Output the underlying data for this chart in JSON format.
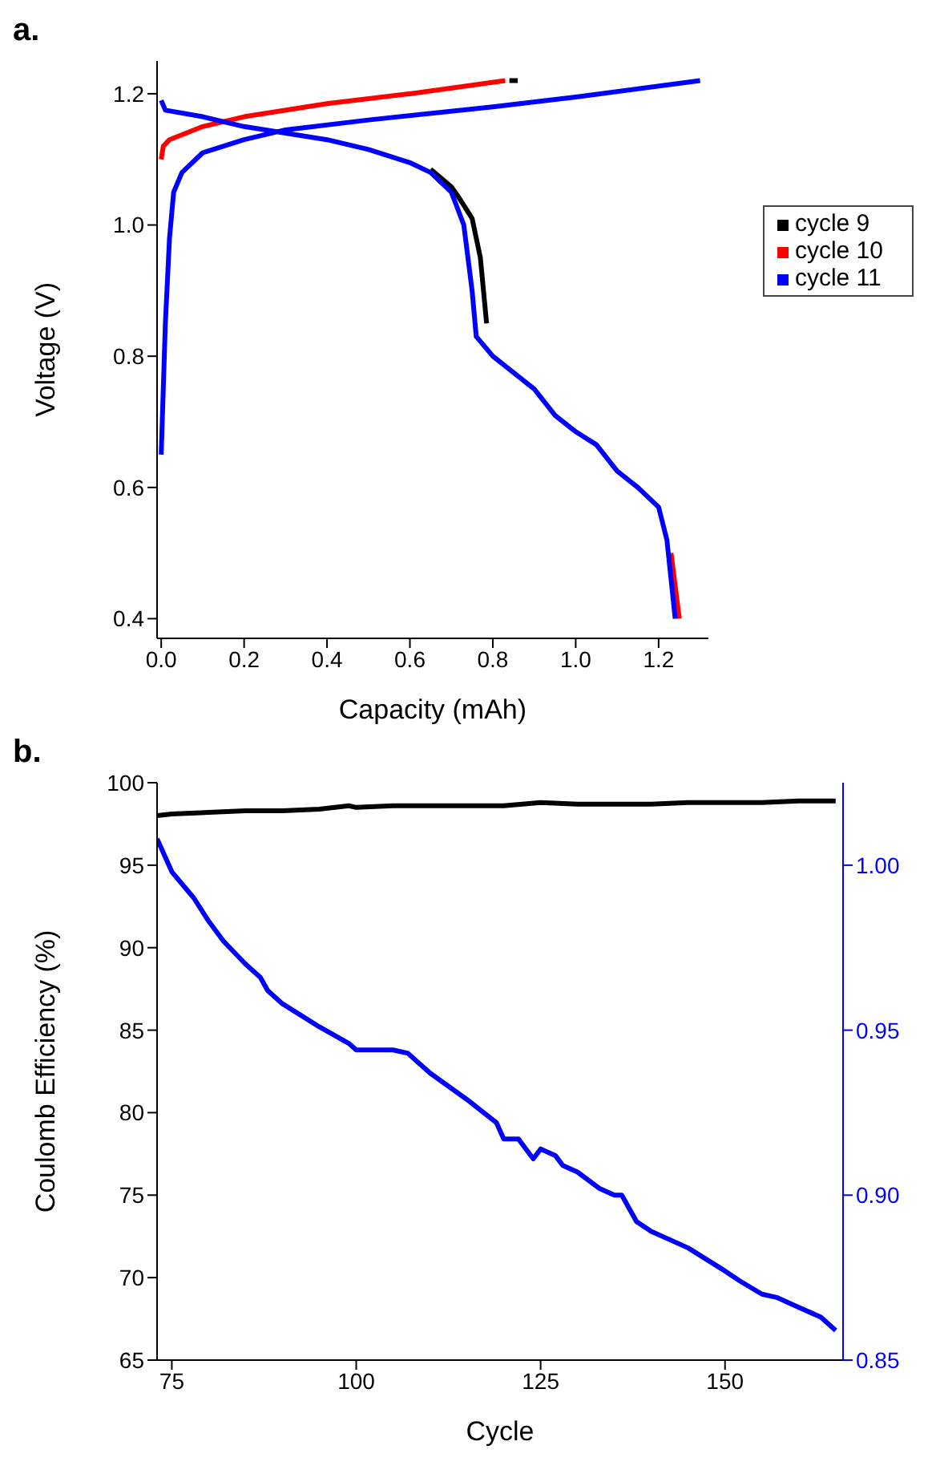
{
  "chart_data": [
    {
      "type": "line",
      "title": "a.",
      "xlabel": "Capacity (mAh)",
      "ylabel": "Voltage (V)",
      "xlim": [
        -0.01,
        1.32
      ],
      "ylim": [
        0.37,
        1.25
      ],
      "xticks": [
        {
          "value": 0,
          "label": "0.0"
        },
        0.2,
        0.4,
        0.6,
        0.8,
        {
          "value": 1,
          "label": "1.0"
        },
        1.2
      ],
      "yticks": [
        0.4,
        0.6,
        0.8,
        {
          "value": 1,
          "label": "1.0"
        },
        1.2
      ],
      "grid": false,
      "legend": "right",
      "line_style": "solid",
      "series": [
        {
          "name": "cycle 9",
          "color": "#000000",
          "x": [
            0.84,
            0.86,
            null,
            0.65,
            0.7,
            0.72,
            0.75,
            0.77,
            0.785
          ],
          "values": [
            1.22,
            1.22,
            null,
            1.085,
            1.058,
            1.04,
            1.01,
            0.95,
            0.85
          ]
        },
        {
          "name": "cycle 10",
          "color": "#ff0000",
          "x": [
            0,
            0.005,
            0.02,
            0.1,
            0.2,
            0.4,
            0.6,
            0.83,
            null,
            1.23,
            1.25
          ],
          "values": [
            1.1,
            1.12,
            1.13,
            1.15,
            1.165,
            1.185,
            1.2,
            1.22,
            null,
            0.5,
            0.4
          ]
        },
        {
          "name": "cycle 11",
          "color": "#0000ff",
          "x": [
            0,
            0.005,
            0.01,
            0.02,
            0.03,
            0.05,
            0.1,
            0.2,
            0.3,
            0.5,
            0.8,
            1.0,
            1.3,
            null,
            0,
            0.01,
            0.1,
            0.2,
            0.3,
            0.4,
            0.5,
            0.6,
            0.65,
            0.7,
            0.73,
            0.75,
            0.76,
            0.8,
            0.85,
            0.9,
            0.95,
            1.0,
            1.05,
            1.1,
            1.15,
            1.2,
            1.22,
            1.24
          ],
          "values": [
            0.65,
            0.75,
            0.85,
            0.98,
            1.05,
            1.08,
            1.11,
            1.13,
            1.145,
            1.16,
            1.18,
            1.195,
            1.22,
            null,
            1.19,
            1.175,
            1.165,
            1.15,
            1.14,
            1.13,
            1.115,
            1.095,
            1.08,
            1.05,
            1.0,
            0.9,
            0.83,
            0.8,
            0.775,
            0.75,
            0.71,
            0.685,
            0.665,
            0.625,
            0.6,
            0.57,
            0.52,
            0.4
          ]
        }
      ]
    },
    {
      "type": "line",
      "title": "b.",
      "xlabel": "Cycle",
      "ylabel": "Coulomb Efficiency (%)",
      "xlim": [
        73,
        166
      ],
      "ylim": [
        65,
        100
      ],
      "y2lim": [
        0.85,
        1.025
      ],
      "xticks": [
        75,
        100,
        125,
        150
      ],
      "yticks": [
        65,
        70,
        75,
        80,
        85,
        90,
        95,
        100
      ],
      "y2ticks": [
        {
          "value": 0.85,
          "label": "0.85"
        },
        {
          "value": 0.9,
          "label": "0.90"
        },
        {
          "value": 0.95,
          "label": "0.95"
        },
        {
          "value": 1,
          "label": "1.00"
        }
      ],
      "grid": false,
      "line_style": "solid",
      "series": [
        {
          "color": "#000000",
          "x": [
            73,
            75,
            80,
            85,
            90,
            95,
            99,
            100,
            105,
            110,
            115,
            120,
            125,
            130,
            135,
            140,
            145,
            150,
            155,
            160,
            165
          ],
          "values": [
            98.0,
            98.1,
            98.2,
            98.3,
            98.3,
            98.4,
            98.6,
            98.5,
            98.6,
            98.6,
            98.6,
            98.6,
            98.8,
            98.7,
            98.7,
            98.7,
            98.8,
            98.8,
            98.8,
            98.9,
            98.9
          ]
        },
        {
          "color": "#0000ff",
          "axis": "y2",
          "x": [
            73,
            75,
            78,
            80,
            82,
            85,
            87,
            88,
            90,
            95,
            99,
            100,
            105,
            107,
            110,
            115,
            119,
            120,
            122,
            124,
            125,
            127,
            128,
            130,
            133,
            135,
            136,
            138,
            140,
            145,
            150,
            152,
            155,
            157,
            160,
            163,
            165
          ],
          "values": [
            1.008,
            0.998,
            0.99,
            0.983,
            0.977,
            0.97,
            0.966,
            0.962,
            0.958,
            0.951,
            0.946,
            0.944,
            0.944,
            0.943,
            0.937,
            0.929,
            0.922,
            0.917,
            0.917,
            0.911,
            0.914,
            0.912,
            0.909,
            0.907,
            0.902,
            0.9,
            0.9,
            0.892,
            0.889,
            0.884,
            0.877,
            0.874,
            0.87,
            0.869,
            0.866,
            0.863,
            0.859
          ]
        }
      ]
    }
  ]
}
